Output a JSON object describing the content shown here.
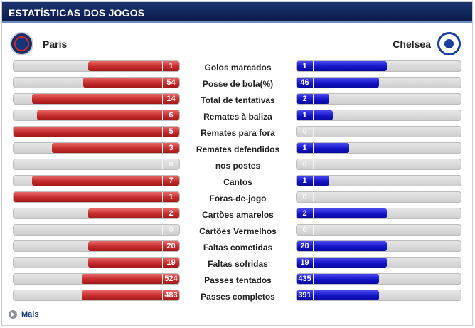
{
  "header": {
    "title": "ESTATÍSTICAS DOS JOGOS"
  },
  "teams": {
    "home": "Paris",
    "away": "Chelsea"
  },
  "colors": {
    "header": "#0b1c4a",
    "home_bar": "#c42b2b",
    "away_bar": "#1414c8",
    "track": "#d9d9d9"
  },
  "stats": [
    {
      "label": "Golos marcados",
      "home": "1",
      "away": "1",
      "home_fill": 0.55,
      "away_fill": 0.55
    },
    {
      "label": "Posse de bola(%)",
      "home": "54",
      "away": "46",
      "home_fill": 0.58,
      "away_fill": 0.5
    },
    {
      "label": "Total de tentativas",
      "home": "14",
      "away": "2",
      "home_fill": 0.89,
      "away_fill": 0.2
    },
    {
      "label": "Remates à baliza",
      "home": "6",
      "away": "1",
      "home_fill": 0.86,
      "away_fill": 0.22
    },
    {
      "label": "Remates para fora",
      "home": "5",
      "away": "0",
      "home_fill": 1.0,
      "away_fill": 0
    },
    {
      "label": "Remates defendidos",
      "home": "3",
      "away": "1",
      "home_fill": 0.77,
      "away_fill": 0.32
    },
    {
      "label": "nos postes",
      "home": "0",
      "away": "0",
      "home_fill": 0,
      "away_fill": 0
    },
    {
      "label": "Cantos",
      "home": "7",
      "away": "1",
      "home_fill": 0.89,
      "away_fill": 0.2
    },
    {
      "label": "Foras-de-jogo",
      "home": "1",
      "away": "0",
      "home_fill": 1.0,
      "away_fill": 0
    },
    {
      "label": "Cartões amarelos",
      "home": "2",
      "away": "2",
      "home_fill": 0.55,
      "away_fill": 0.55
    },
    {
      "label": "Cartões Vermelhos",
      "home": "0",
      "away": "0",
      "home_fill": 0,
      "away_fill": 0
    },
    {
      "label": "Faltas cometidas",
      "home": "20",
      "away": "20",
      "home_fill": 0.55,
      "away_fill": 0.55
    },
    {
      "label": "Faltas sofridas",
      "home": "19",
      "away": "19",
      "home_fill": 0.55,
      "away_fill": 0.55
    },
    {
      "label": "Passes tentados",
      "home": "524",
      "away": "435",
      "home_fill": 0.59,
      "away_fill": 0.5
    },
    {
      "label": "Passes completos",
      "home": "483",
      "away": "391",
      "home_fill": 0.59,
      "away_fill": 0.5
    }
  ],
  "footer": {
    "more_label": "Mais",
    "more_icon": "arrow-right-circle-icon"
  }
}
